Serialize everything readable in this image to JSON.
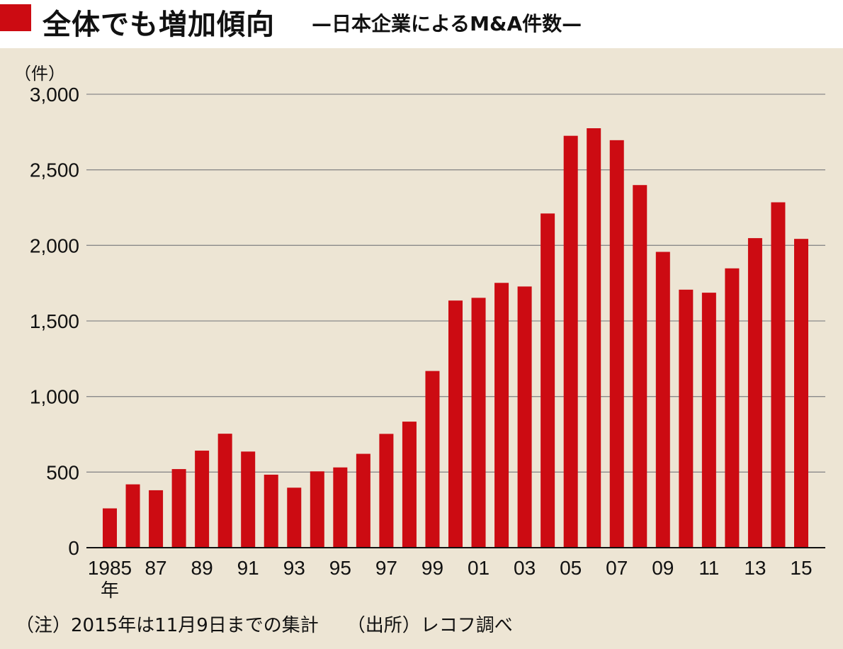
{
  "header": {
    "title": "全体でも増加傾向",
    "subtitle": "—日本企業によるM&A件数—",
    "accent_color": "#cc0b12"
  },
  "chart_data": {
    "type": "bar",
    "title": "全体でも増加傾向",
    "subtitle": "日本企業によるM&A件数",
    "ylabel": "（件）",
    "xlabel": "",
    "ylim": [
      0,
      3000
    ],
    "yticks": [
      {
        "value": 0,
        "label": "0"
      },
      {
        "value": 500,
        "label": "500"
      },
      {
        "value": 1000,
        "label": "1,000"
      },
      {
        "value": 1500,
        "label": "1,500"
      },
      {
        "value": 2000,
        "label": "2,000"
      },
      {
        "value": 2500,
        "label": "2,500"
      },
      {
        "value": 3000,
        "label": "3,000"
      }
    ],
    "grid": true,
    "bar_color": "#cc0b12",
    "categories": [
      "1985",
      "1986",
      "1987",
      "1988",
      "1989",
      "1990",
      "1991",
      "1992",
      "1993",
      "1994",
      "1995",
      "1996",
      "1997",
      "1998",
      "1999",
      "2000",
      "2001",
      "2002",
      "2003",
      "2004",
      "2005",
      "2006",
      "2007",
      "2008",
      "2009",
      "2010",
      "2011",
      "2012",
      "2013",
      "2014",
      "2015"
    ],
    "x_tick_labels": [
      "1985",
      "",
      "87",
      "",
      "89",
      "",
      "91",
      "",
      "93",
      "",
      "95",
      "",
      "97",
      "",
      "99",
      "",
      "01",
      "",
      "03",
      "",
      "05",
      "",
      "07",
      "",
      "09",
      "",
      "11",
      "",
      "13",
      "",
      "15"
    ],
    "x_first_suffix": "年",
    "values": [
      260,
      419,
      380,
      520,
      642,
      754,
      636,
      483,
      397,
      505,
      531,
      621,
      753,
      834,
      1169,
      1635,
      1653,
      1752,
      1728,
      2211,
      2725,
      2775,
      2696,
      2399,
      1957,
      1707,
      1687,
      1848,
      2048,
      2285,
      2043
    ]
  },
  "notes": {
    "note": "（注）2015年は11月9日までの集計",
    "source": "（出所）レコフ調べ"
  }
}
